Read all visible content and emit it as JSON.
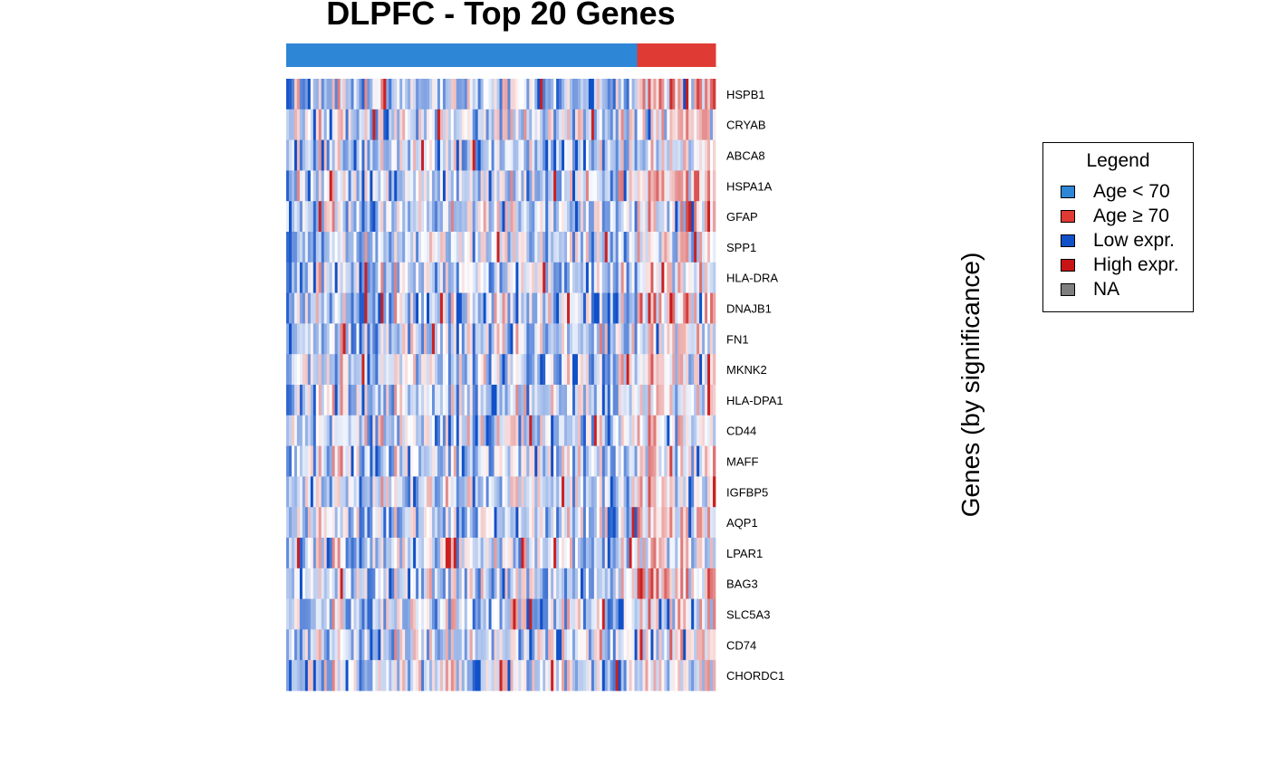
{
  "chart_data": {
    "type": "heatmap",
    "title": "DLPFC - Top 20 Genes",
    "ylabel": "Genes (by significance)",
    "genes": [
      "HSPB1",
      "CRYAB",
      "ABCA8",
      "HSPA1A",
      "GFAP",
      "SPP1",
      "HLA-DRA",
      "DNAJB1",
      "FN1",
      "MKNK2",
      "HLA-DPA1",
      "CD44",
      "MAFF",
      "IGFBP5",
      "AQP1",
      "LPAR1",
      "BAG3",
      "SLC5A3",
      "CD74",
      "CHORDC1"
    ],
    "groups": [
      {
        "name": "Age < 70",
        "color": "#2e86d6",
        "samples": 130
      },
      {
        "name": "Age ≥ 70",
        "color": "#e03a34",
        "samples": 29
      }
    ],
    "color_scale": {
      "low": "#1050c8",
      "mid": "#ffffff",
      "high": "#c81414"
    },
    "legend_title": "Legend",
    "legend": [
      {
        "label": "Age < 70",
        "color": "#2e86d6"
      },
      {
        "label": "Age ≥ 70",
        "color": "#e03a34"
      },
      {
        "label": "Low expr.",
        "color": "#1050c8"
      },
      {
        "label": "High expr.",
        "color": "#c81414"
      },
      {
        "label": "NA",
        "color": "#7f7f7f"
      }
    ]
  }
}
